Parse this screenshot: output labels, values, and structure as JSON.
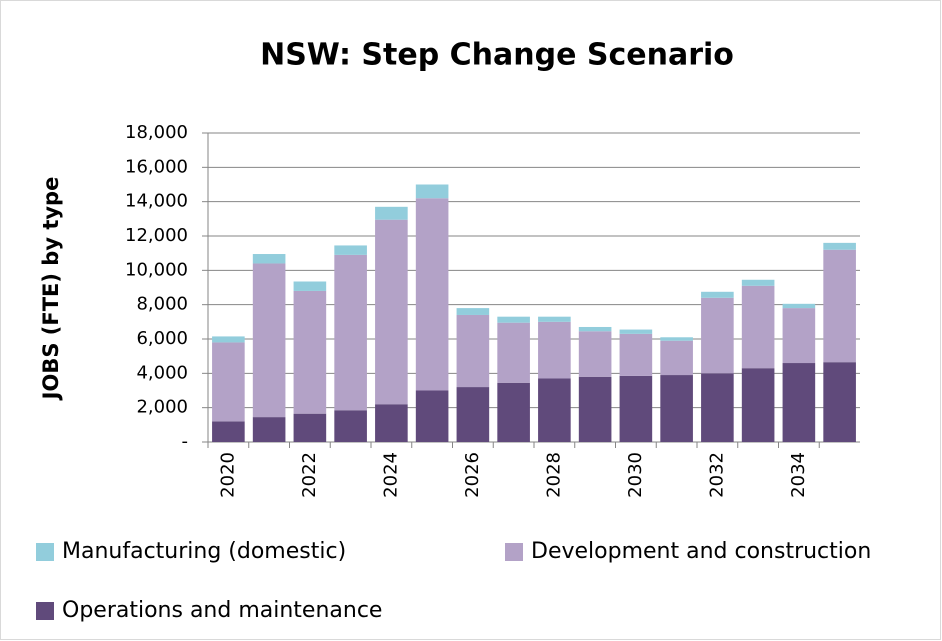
{
  "chart_data": {
    "type": "stacked-bar",
    "title": "NSW: Step Change Scenario",
    "y_label": "JOBS (FTE) by type",
    "categories": [
      "2020",
      null,
      "2022",
      null,
      "2024",
      null,
      "2026",
      null,
      "2028",
      null,
      "2030",
      null,
      "2032",
      null,
      "2034",
      null
    ],
    "series": [
      {
        "name": "Manufacturing (domestic)",
        "color": "#92cddc",
        "values": [
          350,
          550,
          550,
          550,
          750,
          800,
          400,
          350,
          300,
          250,
          250,
          200,
          350,
          350,
          250,
          400
        ]
      },
      {
        "name": "Development and construction",
        "color": "#b3a2c7",
        "values": [
          4600,
          8950,
          7150,
          9050,
          10750,
          11200,
          4200,
          3500,
          3300,
          2650,
          2450,
          2000,
          4400,
          4800,
          3200,
          6550
        ]
      },
      {
        "name": "Operations and maintenance",
        "color": "#604a7b",
        "values": [
          1200,
          1450,
          1650,
          1850,
          2200,
          3000,
          3200,
          3450,
          3700,
          3800,
          3850,
          3900,
          4000,
          4300,
          4600,
          4650
        ]
      }
    ],
    "ylim": [
      0,
      18000
    ],
    "yticks": [
      {
        "value": 0,
        "label": "-"
      },
      {
        "value": 2000,
        "label": "2,000"
      },
      {
        "value": 4000,
        "label": "4,000"
      },
      {
        "value": 6000,
        "label": "6,000"
      },
      {
        "value": 8000,
        "label": "8,000"
      },
      {
        "value": 10000,
        "label": "10,000"
      },
      {
        "value": 12000,
        "label": "12,000"
      },
      {
        "value": 14000,
        "label": "14,000"
      },
      {
        "value": 16000,
        "label": "16,000"
      },
      {
        "value": 18000,
        "label": "18,000"
      }
    ],
    "grid": true
  }
}
